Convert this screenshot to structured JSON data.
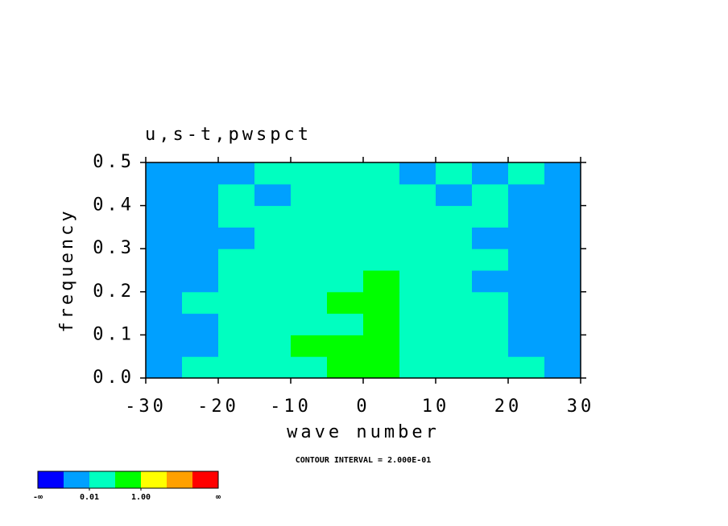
{
  "chart_data": {
    "type": "heatmap",
    "title": "u,s-t,pwspct",
    "x_label": "wave number",
    "y_label": "frequency",
    "annotation": "CONTOUR INTERVAL = 2.000E-01",
    "xlim": [
      -30,
      30
    ],
    "ylim": [
      0,
      0.5
    ],
    "xticks": [
      -30,
      -20,
      -10,
      0,
      10,
      20,
      30
    ],
    "yticks": [
      {
        "value": 0,
        "label": "0.0"
      },
      0.1,
      0.2,
      0.3,
      0.4,
      0.5
    ],
    "x_edges": [
      -30,
      -25,
      -20,
      -15,
      -10,
      -5,
      0,
      5,
      10,
      15,
      20,
      25,
      30
    ],
    "y_edges": [
      0,
      0.05,
      0.1,
      0.15,
      0.2,
      0.25,
      0.3,
      0.35,
      0.4,
      0.45,
      0.5
    ],
    "z": [
      [
        0.005,
        0.05,
        0.05,
        0.05,
        0.05,
        0.3,
        0.3,
        0.05,
        0.05,
        0.05,
        0.05,
        0.005
      ],
      [
        0.005,
        0.005,
        0.05,
        0.05,
        0.3,
        0.3,
        0.3,
        0.05,
        0.05,
        0.05,
        0.005,
        0.005
      ],
      [
        0.005,
        0.005,
        0.05,
        0.05,
        0.05,
        0.05,
        0.3,
        0.05,
        0.05,
        0.05,
        0.005,
        0.005
      ],
      [
        0.005,
        0.05,
        0.05,
        0.05,
        0.05,
        0.3,
        0.3,
        0.05,
        0.05,
        0.05,
        0.005,
        0.005
      ],
      [
        0.005,
        0.005,
        0.05,
        0.05,
        0.05,
        0.05,
        0.3,
        0.05,
        0.05,
        0.005,
        0.005,
        0.005
      ],
      [
        0.005,
        0.005,
        0.05,
        0.05,
        0.05,
        0.05,
        0.05,
        0.05,
        0.05,
        0.05,
        0.005,
        0.005
      ],
      [
        0.005,
        0.005,
        0.005,
        0.05,
        0.05,
        0.05,
        0.05,
        0.05,
        0.05,
        0.005,
        0.005,
        0.005
      ],
      [
        0.005,
        0.005,
        0.05,
        0.05,
        0.05,
        0.05,
        0.05,
        0.05,
        0.05,
        0.05,
        0.005,
        0.005
      ],
      [
        0.005,
        0.005,
        0.05,
        0.005,
        0.05,
        0.05,
        0.05,
        0.05,
        0.005,
        0.05,
        0.005,
        0.005
      ],
      [
        0.005,
        0.005,
        0.005,
        0.05,
        0.05,
        0.05,
        0.05,
        0.005,
        0.05,
        0.005,
        0.05,
        0.005
      ]
    ],
    "colorbar": {
      "colors": [
        "#0000ff",
        "#00a0ff",
        "#00ffc0",
        "#00ff00",
        "#ffff00",
        "#ffa000",
        "#ff0000"
      ],
      "levels": [
        0.001,
        0.01,
        0.1,
        1,
        10,
        100
      ],
      "low_label": "-∞",
      "high_label": "∞",
      "ticks": [
        0.01,
        {
          "value": 1,
          "label": "1.00"
        }
      ]
    }
  }
}
